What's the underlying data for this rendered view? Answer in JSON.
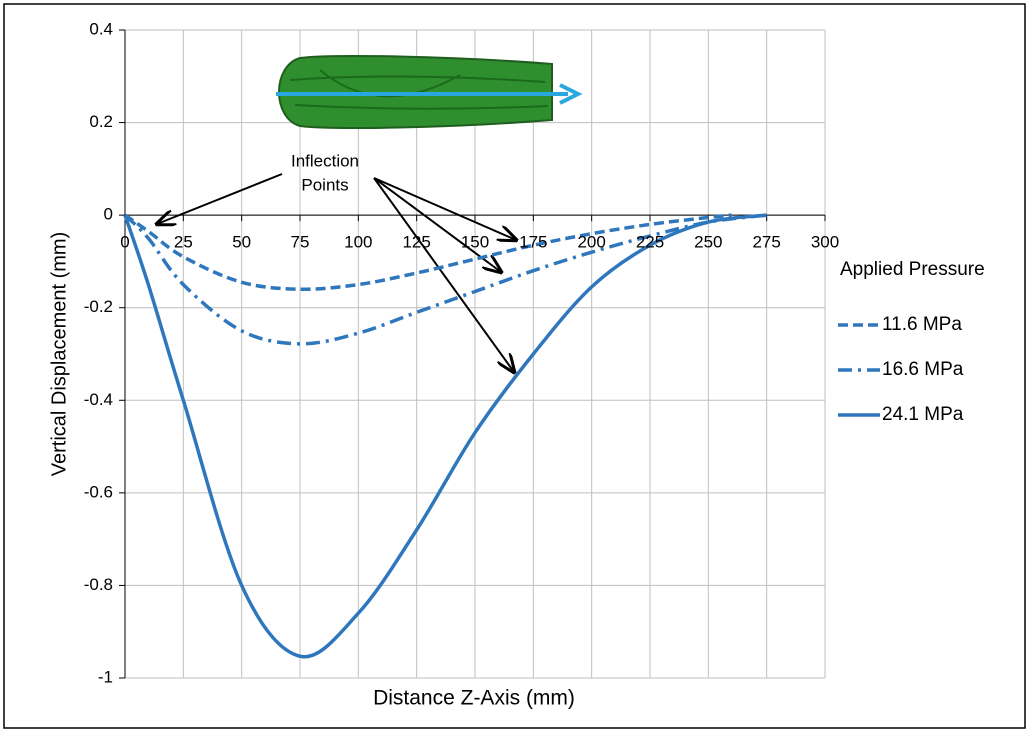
{
  "chart_data": {
    "type": "line",
    "y_label": "Vertical Displacement (mm)",
    "x_label": "Distance Z-Axis (mm)",
    "legend_title": "Applied Pressure",
    "annotation": [
      "Inflection",
      "Points"
    ],
    "xlim": [
      0,
      300
    ],
    "xticks": [
      0,
      25,
      50,
      75,
      100,
      125,
      150,
      175,
      200,
      225,
      250,
      275,
      300
    ],
    "ylim": [
      -1,
      0.4
    ],
    "yticks": [
      0.4,
      0.2,
      0,
      -0.2,
      -0.4,
      -0.6,
      -0.8,
      -1
    ],
    "grid": true,
    "legend": "right",
    "series": [
      {
        "name": "11.6 MPa",
        "color": "#2f77bd",
        "dash": "dashed",
        "x": [
          0,
          10,
          25,
          50,
          75,
          100,
          125,
          150,
          175,
          200,
          225,
          250,
          260
        ],
        "values": [
          0,
          -0.035,
          -0.09,
          -0.145,
          -0.16,
          -0.15,
          -0.125,
          -0.095,
          -0.065,
          -0.04,
          -0.02,
          -0.005,
          0
        ]
      },
      {
        "name": "16.6 MPa",
        "color": "#2f77bd",
        "dash": "dashdot",
        "x": [
          0,
          10,
          25,
          50,
          75,
          100,
          125,
          150,
          175,
          200,
          225,
          250,
          275
        ],
        "values": [
          0,
          -0.05,
          -0.15,
          -0.25,
          -0.278,
          -0.255,
          -0.21,
          -0.165,
          -0.12,
          -0.08,
          -0.045,
          -0.015,
          0
        ]
      },
      {
        "name": "24.1 MPa",
        "color": "#2f77bd",
        "dash": "solid",
        "x": [
          0,
          10,
          25,
          50,
          75,
          100,
          125,
          150,
          175,
          200,
          225,
          250,
          275
        ],
        "values": [
          0,
          -0.15,
          -0.4,
          -0.8,
          -0.953,
          -0.86,
          -0.68,
          -0.47,
          -0.3,
          -0.155,
          -0.065,
          -0.015,
          0
        ]
      }
    ]
  }
}
